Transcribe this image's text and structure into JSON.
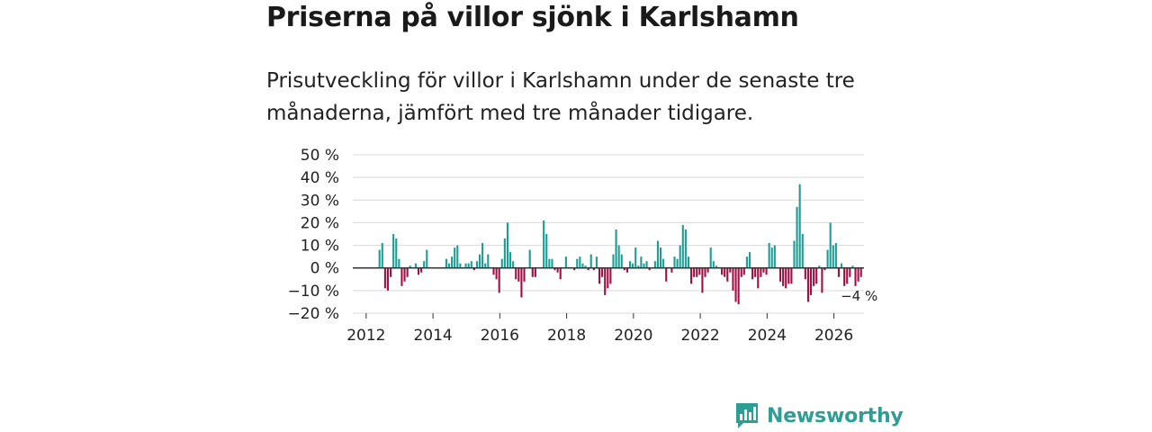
{
  "chart_data": {
    "type": "bar",
    "title": "Priserna på villor sjönk i Karlshamn",
    "subtitle": "Prisutveckling för villor i Karlshamn under de senaste tre månaderna, jämfört med tre månader tidigare.",
    "ylabel": "",
    "xlabel": "",
    "ylim": [
      -20,
      50
    ],
    "yticks": [
      50,
      40,
      30,
      20,
      10,
      0,
      -10,
      -20
    ],
    "ytick_labels": [
      "50 %",
      "40 %",
      "30 %",
      "20 %",
      "10 %",
      "0 %",
      "−10 %",
      "−20 %"
    ],
    "xlim": [
      2011.6,
      2026.9
    ],
    "xticks": [
      2012,
      2014,
      2016,
      2018,
      2020,
      2022,
      2024,
      2026
    ],
    "xtick_labels": [
      "2012",
      "2014",
      "2016",
      "2018",
      "2020",
      "2022",
      "2024",
      "2026"
    ],
    "start_year": 2012.4,
    "step_years": 0.0833,
    "values": [
      8,
      11,
      -9,
      -10,
      -4,
      15,
      13,
      4,
      -8,
      -6,
      -4,
      1,
      0,
      2,
      -3,
      -2,
      3,
      8,
      0,
      0,
      0,
      0,
      0,
      0,
      4,
      2,
      5,
      9,
      10,
      2,
      0,
      2,
      2,
      3,
      -1,
      3,
      6,
      11,
      2,
      6,
      0,
      -3,
      -5,
      -11,
      4,
      13,
      20,
      7,
      3,
      -5,
      -6,
      -13,
      -6,
      0,
      8,
      -4,
      -4,
      0,
      0,
      21,
      15,
      4,
      4,
      -1,
      -2,
      -5,
      0,
      5,
      0,
      0,
      -1,
      4,
      5,
      2,
      1,
      -1,
      6,
      -1,
      5,
      -7,
      -4,
      -12,
      -9,
      -7,
      6,
      17,
      10,
      6,
      -1,
      -2,
      3,
      2,
      9,
      1,
      5,
      2,
      3,
      -1,
      0,
      3,
      12,
      9,
      4,
      -6,
      0,
      -2,
      5,
      4,
      10,
      19,
      17,
      5,
      -7,
      -4,
      -4,
      -3,
      -11,
      -4,
      -2,
      9,
      3,
      1,
      0,
      -3,
      -4,
      -6,
      -2,
      -10,
      -15,
      -16,
      -4,
      -3,
      5,
      7,
      -5,
      -4,
      -9,
      -4,
      -2,
      -3,
      11,
      9,
      10,
      0,
      -6,
      -8,
      -9,
      -7,
      -7,
      12,
      27,
      37,
      15,
      -5,
      -15,
      -12,
      -8,
      -7,
      1,
      -11,
      -1,
      8,
      20,
      10,
      11,
      -4,
      2,
      -8,
      -7,
      -4,
      1,
      -8,
      -6,
      -4
    ],
    "last_label": "−4 %",
    "positive_color": "#1a9e95",
    "negative_color": "#a30f45"
  },
  "brand": {
    "name": "Newsworthy",
    "logo_icon": "bar-chart-speech-bubble-icon",
    "color": "#2e9e95"
  }
}
